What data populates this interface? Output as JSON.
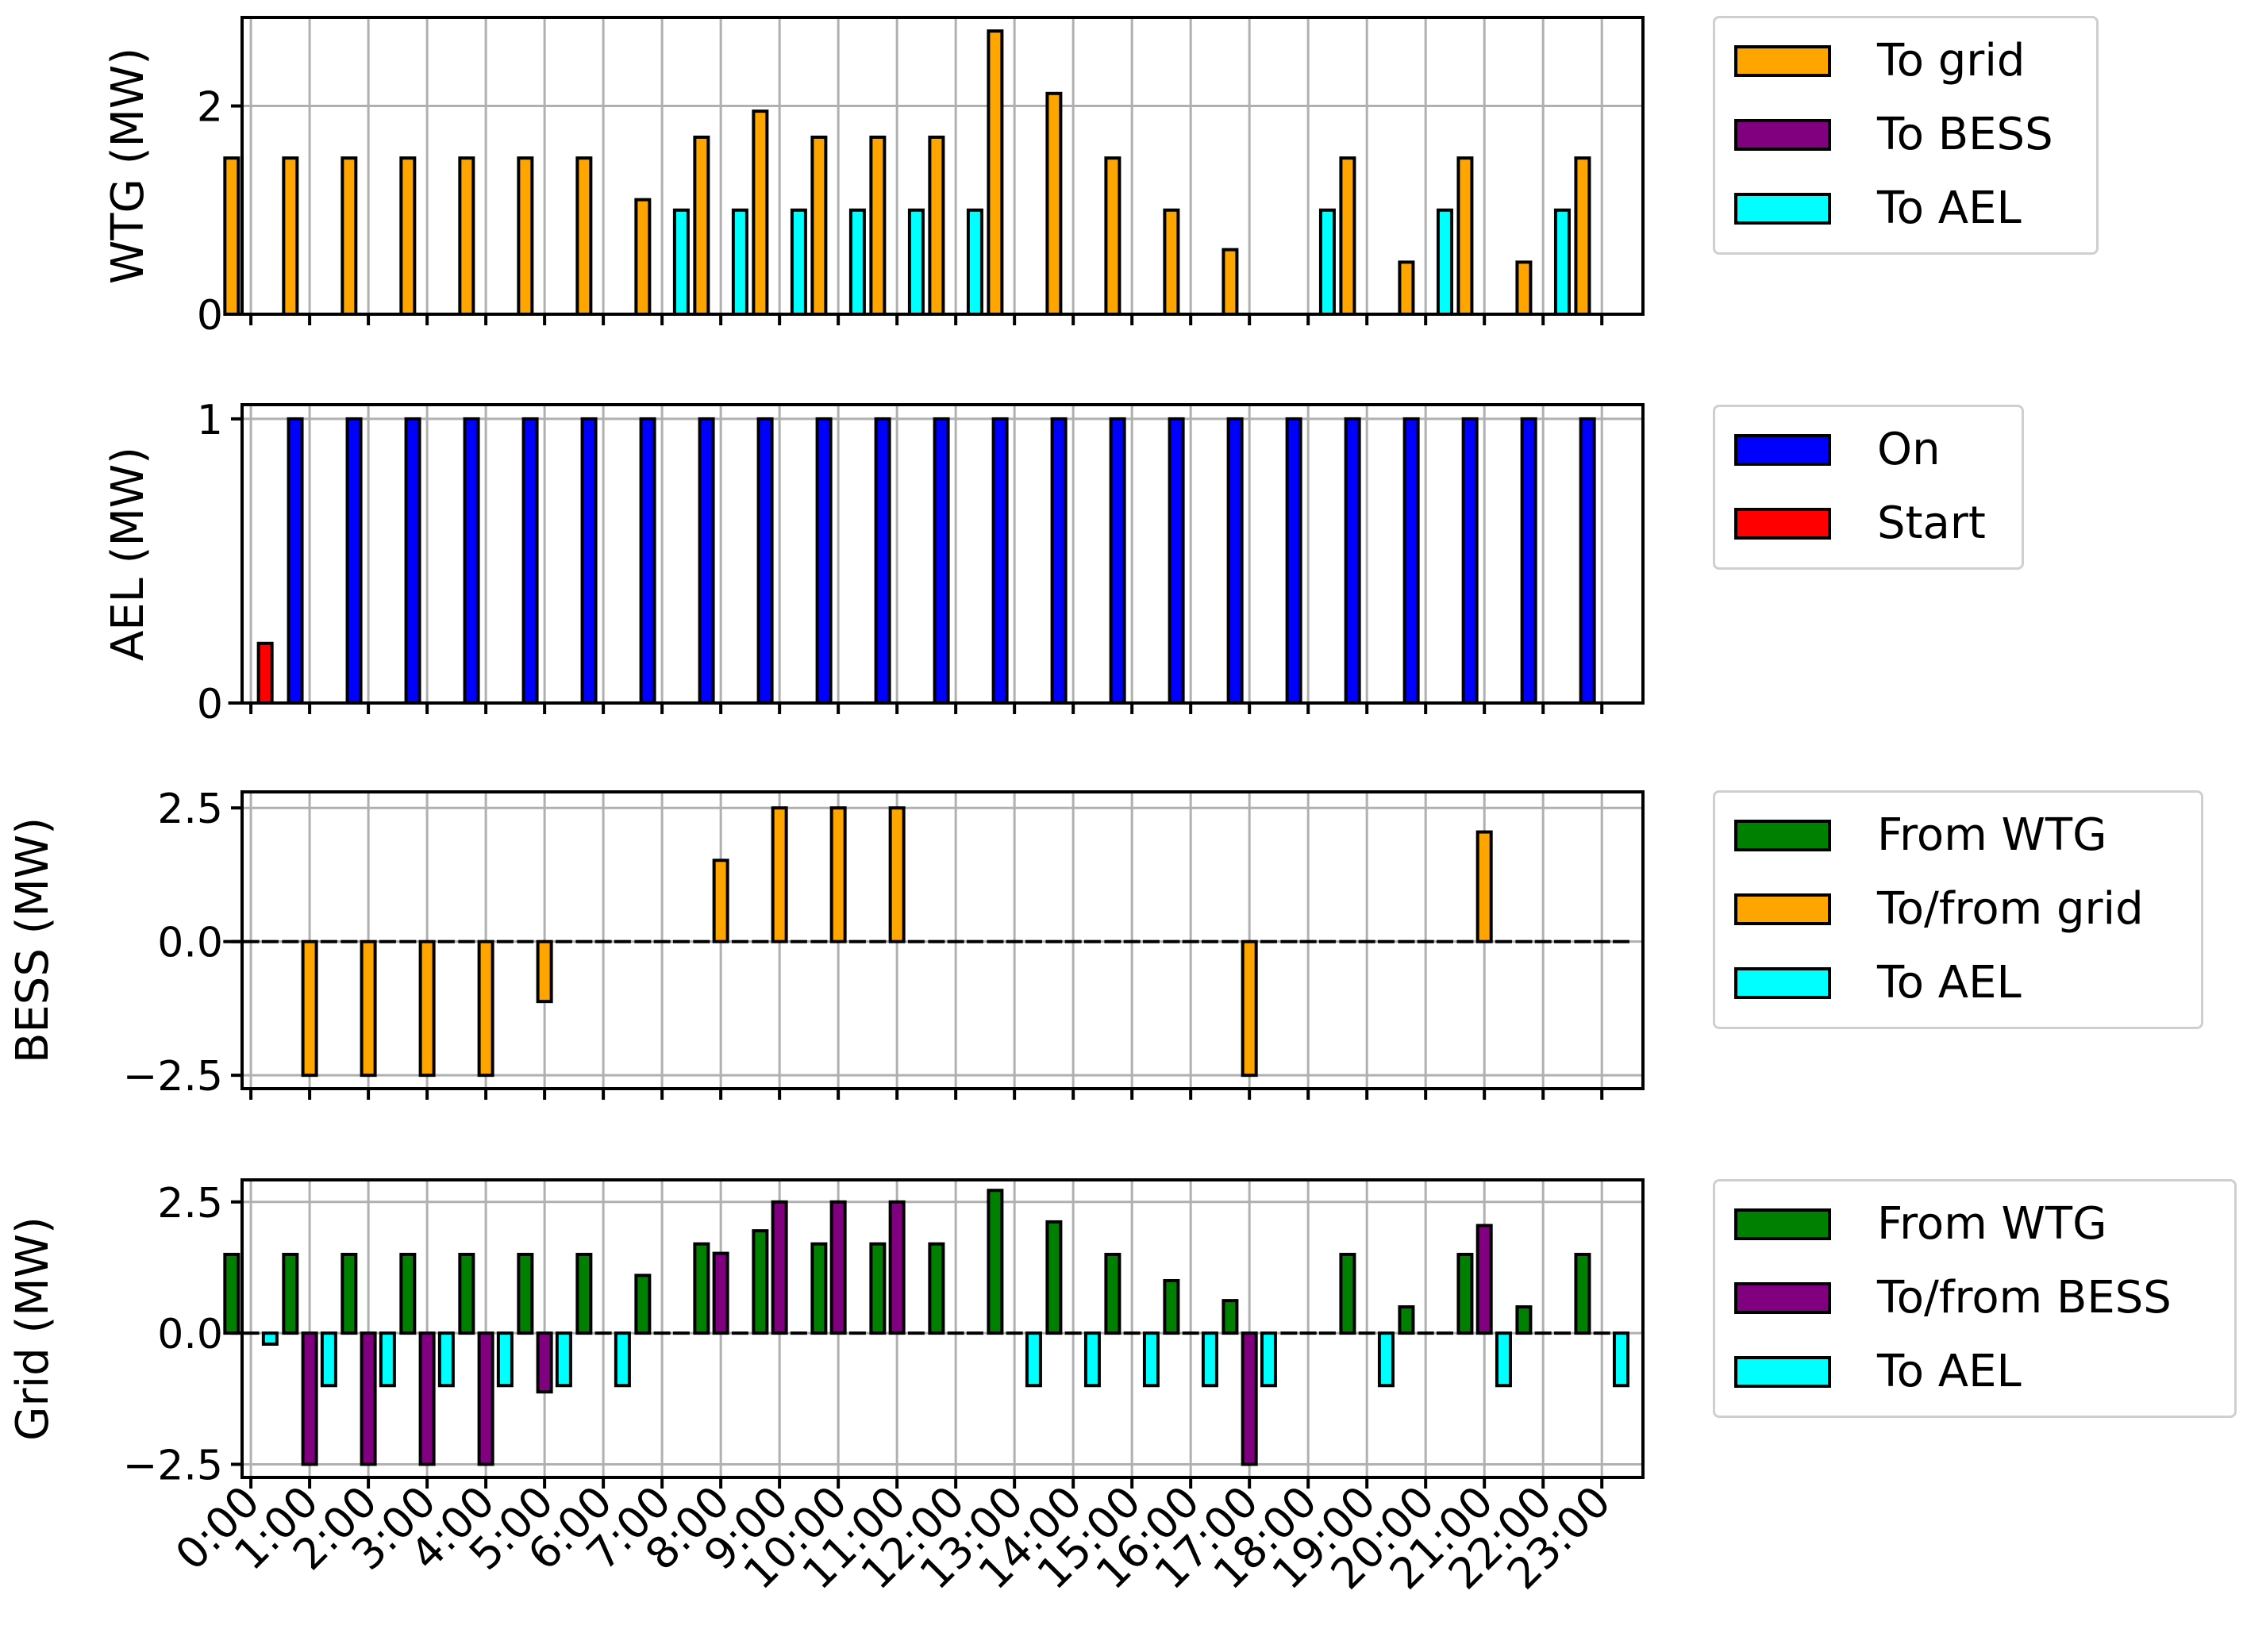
{
  "chart_data": [
    {
      "type": "bar",
      "ylabel": "WTG (MW)",
      "ylim": [
        0,
        2.85
      ],
      "yticks": [
        0,
        2
      ],
      "ytick_labels": [
        "0",
        "2"
      ],
      "categories": [
        "0:00",
        "1:00",
        "2:00",
        "3:00",
        "4:00",
        "5:00",
        "6:00",
        "7:00",
        "8:00",
        "9:00",
        "10:00",
        "11:00",
        "12:00",
        "13:00",
        "14:00",
        "15:00",
        "16:00",
        "17:00",
        "18:00",
        "19:00",
        "20:00",
        "21:00",
        "22:00",
        "23:00"
      ],
      "series": [
        {
          "name": "To grid",
          "color": "#FFA500",
          "values": [
            1.5,
            1.5,
            1.5,
            1.5,
            1.5,
            1.5,
            1.5,
            1.1,
            1.7,
            1.95,
            1.7,
            1.7,
            1.7,
            2.72,
            2.12,
            1.5,
            1.0,
            0.62,
            0,
            1.5,
            0.5,
            1.5,
            0.5,
            1.5
          ]
        },
        {
          "name": "To BESS",
          "color": "#800080",
          "values": [
            0,
            0,
            0,
            0,
            0,
            0,
            0,
            0,
            0,
            0,
            0,
            0,
            0,
            0,
            0,
            0,
            0,
            0,
            0,
            0,
            0,
            0,
            0,
            0
          ]
        },
        {
          "name": "To AEL",
          "color": "#00FFFF",
          "values": [
            0,
            0,
            0,
            0,
            0,
            0,
            0,
            1,
            1,
            1,
            1,
            1,
            1,
            0,
            0,
            0,
            0,
            0,
            1,
            0,
            1,
            0,
            1,
            0
          ]
        }
      ],
      "legend": "outside-right"
    },
    {
      "type": "bar",
      "ylabel": "AEL (MW)",
      "ylim": [
        0,
        1.05
      ],
      "yticks": [
        0,
        1
      ],
      "ytick_labels": [
        "0",
        "1"
      ],
      "categories": [
        "0:00",
        "1:00",
        "2:00",
        "3:00",
        "4:00",
        "5:00",
        "6:00",
        "7:00",
        "8:00",
        "9:00",
        "10:00",
        "11:00",
        "12:00",
        "13:00",
        "14:00",
        "15:00",
        "16:00",
        "17:00",
        "18:00",
        "19:00",
        "20:00",
        "21:00",
        "22:00",
        "23:00"
      ],
      "series": [
        {
          "name": "On",
          "color": "#0000FF",
          "values": [
            0,
            1,
            1,
            1,
            1,
            1,
            1,
            1,
            1,
            1,
            1,
            1,
            1,
            1,
            1,
            1,
            1,
            1,
            1,
            1,
            1,
            1,
            1,
            1
          ]
        },
        {
          "name": "Start",
          "color": "#FF0000",
          "values": [
            0.21,
            0,
            0,
            0,
            0,
            0,
            0,
            0,
            0,
            0,
            0,
            0,
            0,
            0,
            0,
            0,
            0,
            0,
            0,
            0,
            0,
            0,
            0,
            0
          ]
        }
      ],
      "legend": "outside-right"
    },
    {
      "type": "bar",
      "ylabel": "BESS (MW)",
      "ylim": [
        -2.75,
        2.8
      ],
      "yticks": [
        -2.5,
        0,
        2.5
      ],
      "ytick_labels": [
        "−2.5",
        "0.0",
        "2.5"
      ],
      "categories": [
        "0:00",
        "1:00",
        "2:00",
        "3:00",
        "4:00",
        "5:00",
        "6:00",
        "7:00",
        "8:00",
        "9:00",
        "10:00",
        "11:00",
        "12:00",
        "13:00",
        "14:00",
        "15:00",
        "16:00",
        "17:00",
        "18:00",
        "19:00",
        "20:00",
        "21:00",
        "22:00",
        "23:00"
      ],
      "series": [
        {
          "name": "From WTG",
          "color": "#008000",
          "values": [
            0,
            0,
            0,
            0,
            0,
            0,
            0,
            0,
            0,
            0,
            0,
            0,
            0,
            0,
            0,
            0,
            0,
            0,
            0,
            0,
            0,
            0,
            0,
            0
          ]
        },
        {
          "name": "To/from grid",
          "color": "#FFA500",
          "values": [
            0,
            -2.5,
            -2.5,
            -2.5,
            -2.5,
            -1.12,
            0,
            0,
            1.52,
            2.5,
            2.5,
            2.5,
            0,
            0,
            0,
            0,
            0,
            -2.5,
            0,
            0,
            0,
            2.05,
            0,
            0
          ]
        },
        {
          "name": "To AEL",
          "color": "#00FFFF",
          "values": [
            0,
            0,
            0,
            0,
            0,
            0,
            0,
            0,
            0,
            0,
            0,
            0,
            0,
            0,
            0,
            0,
            0,
            0,
            0,
            0,
            0,
            0,
            0,
            0
          ]
        }
      ],
      "legend": "outside-right"
    },
    {
      "type": "bar",
      "ylabel": "Grid (MW)",
      "ylim": [
        -2.75,
        2.92
      ],
      "yticks": [
        -2.5,
        0,
        2.5
      ],
      "ytick_labels": [
        "−2.5",
        "0.0",
        "2.5"
      ],
      "xlabel": "",
      "categories": [
        "0:00",
        "1:00",
        "2:00",
        "3:00",
        "4:00",
        "5:00",
        "6:00",
        "7:00",
        "8:00",
        "9:00",
        "10:00",
        "11:00",
        "12:00",
        "13:00",
        "14:00",
        "15:00",
        "16:00",
        "17:00",
        "18:00",
        "19:00",
        "20:00",
        "21:00",
        "22:00",
        "23:00"
      ],
      "series": [
        {
          "name": "From WTG",
          "color": "#008000",
          "values": [
            1.5,
            1.5,
            1.5,
            1.5,
            1.5,
            1.5,
            1.5,
            1.1,
            1.7,
            1.95,
            1.7,
            1.7,
            1.7,
            2.72,
            2.12,
            1.5,
            1.0,
            0.62,
            0,
            1.5,
            0.5,
            1.5,
            0.5,
            1.5
          ]
        },
        {
          "name": "To/from BESS",
          "color": "#800080",
          "values": [
            0,
            -2.5,
            -2.5,
            -2.5,
            -2.5,
            -1.12,
            0,
            0,
            1.52,
            2.5,
            2.5,
            2.5,
            0,
            0,
            0,
            0,
            0,
            -2.5,
            0,
            0,
            0,
            2.05,
            0,
            0
          ]
        },
        {
          "name": "To AEL",
          "color": "#00FFFF",
          "values": [
            -0.21,
            -1,
            -1,
            -1,
            -1,
            -1,
            -1,
            0,
            0,
            0,
            0,
            0,
            0,
            -1,
            -1,
            -1,
            -1,
            -1,
            0,
            -1,
            0,
            -1,
            0,
            -1
          ]
        }
      ],
      "legend": "outside-right"
    }
  ],
  "legends": [
    [
      "To grid",
      "To BESS",
      "To AEL"
    ],
    [
      "On",
      "Start"
    ],
    [
      "From WTG",
      "To/from grid",
      "To AEL"
    ],
    [
      "From WTG",
      "To/from BESS",
      "To AEL"
    ]
  ]
}
